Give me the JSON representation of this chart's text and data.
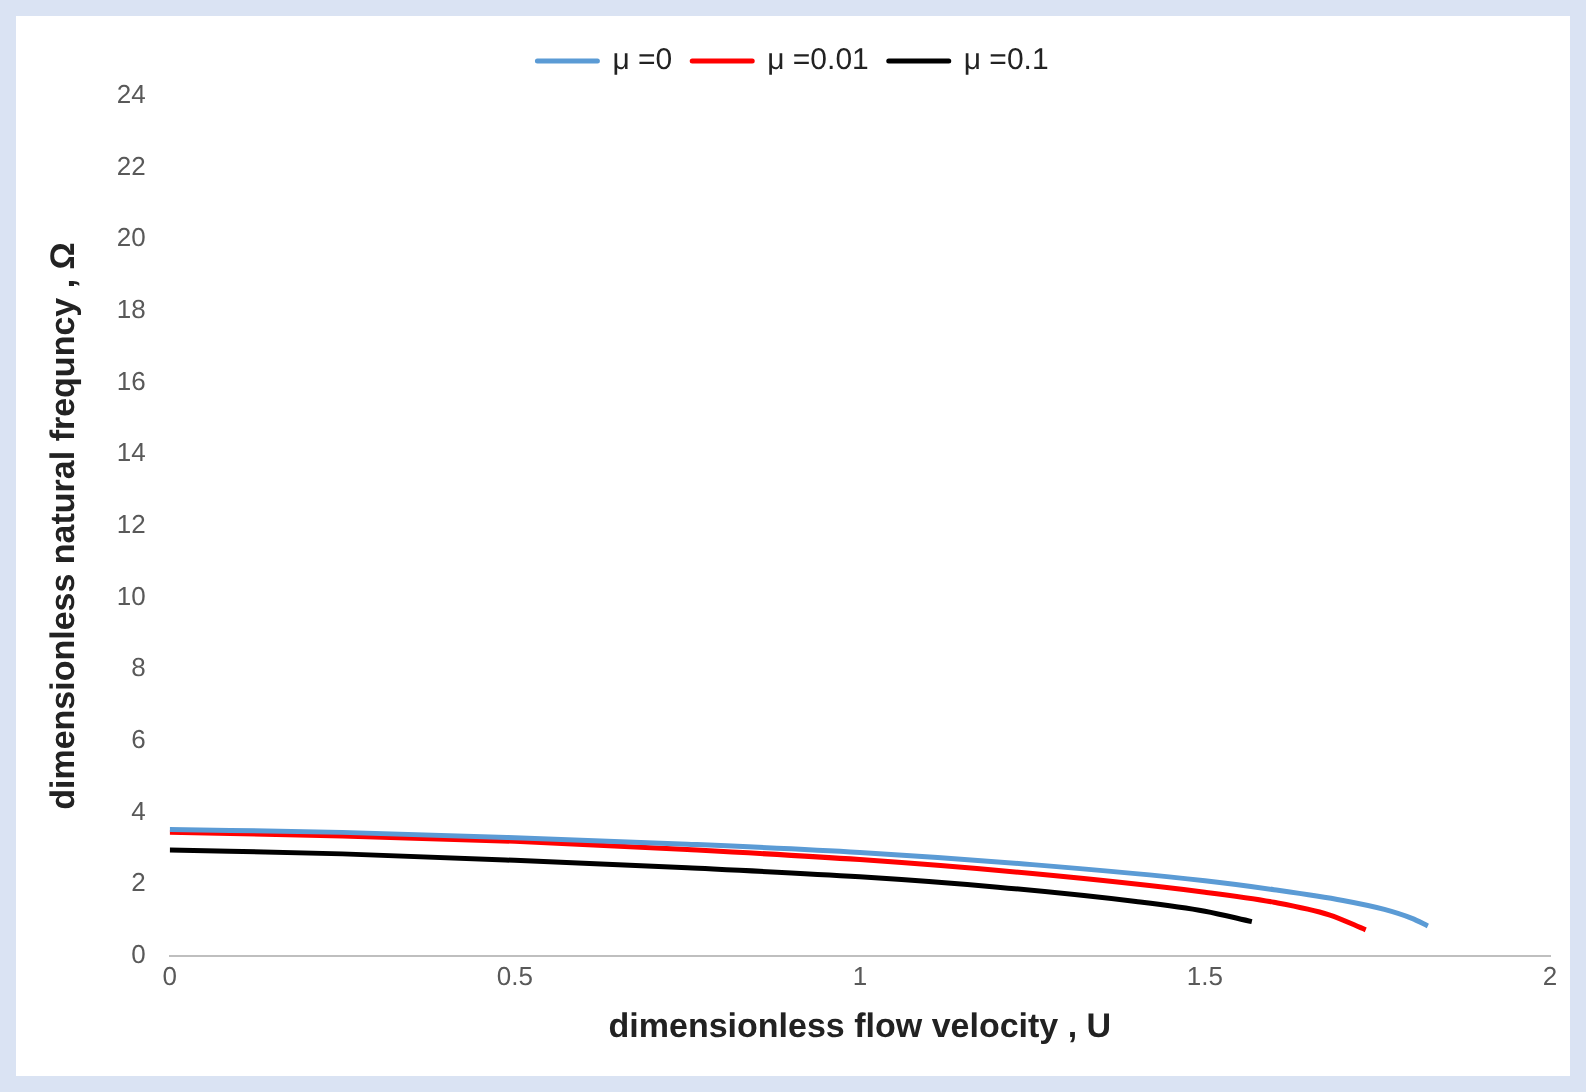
{
  "chart_data": {
    "type": "line",
    "xlabel": "dimensionless flow velocity , U",
    "ylabel": "dimensionless natural frequncy , Ω",
    "xlim": [
      0,
      2
    ],
    "xticks": [
      0,
      0.5,
      1,
      1.5,
      2
    ],
    "ylim": [
      0,
      24
    ],
    "yticks": [
      0,
      2,
      4,
      6,
      8,
      10,
      12,
      14,
      16,
      18,
      20,
      22,
      24
    ],
    "grid": false,
    "legend": "top",
    "marker": "none",
    "line_style": "solid",
    "series": [
      {
        "name": "μ =0",
        "color": "#5b9bd5",
        "x": [
          0,
          0.25,
          0.5,
          0.75,
          1,
          1.25,
          1.5,
          1.6,
          1.7,
          1.76,
          1.8,
          1.823
        ],
        "values": [
          3.53,
          3.45,
          3.3,
          3.12,
          2.89,
          2.55,
          2.1,
          1.85,
          1.55,
          1.3,
          1.05,
          0.84
        ]
      },
      {
        "name": "μ =0.01",
        "color": "#ff0000",
        "x": [
          0,
          0.25,
          0.5,
          0.75,
          1,
          1.25,
          1.5,
          1.6,
          1.68,
          1.733
        ],
        "values": [
          3.45,
          3.35,
          3.2,
          2.97,
          2.69,
          2.3,
          1.78,
          1.5,
          1.15,
          0.73
        ]
      },
      {
        "name": "μ =0.1",
        "color": "#000000",
        "x": [
          0,
          0.25,
          0.5,
          0.75,
          1,
          1.2,
          1.4,
          1.5,
          1.568
        ],
        "values": [
          2.96,
          2.85,
          2.67,
          2.46,
          2.21,
          1.92,
          1.52,
          1.25,
          0.96
        ]
      }
    ]
  }
}
